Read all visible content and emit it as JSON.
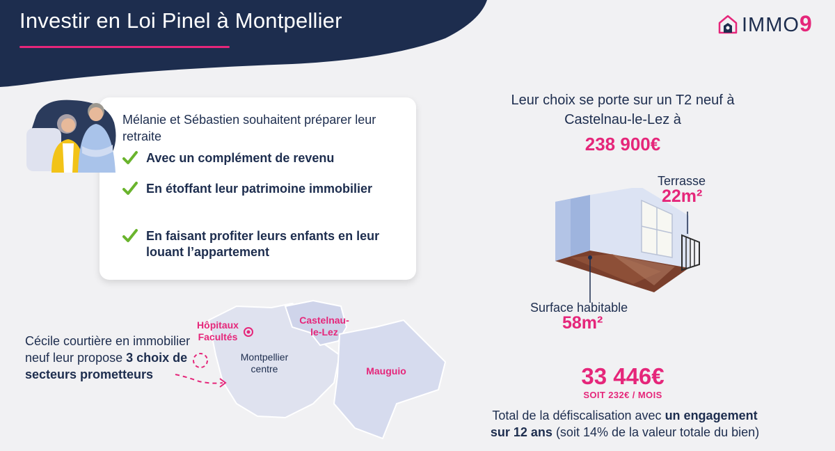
{
  "header": {
    "title": "Investir en Loi Pinel à Montpellier",
    "logo_text": "IMMO",
    "logo_accent": "9"
  },
  "colors": {
    "navy": "#1d2d4e",
    "pink": "#e5267a",
    "background": "#f1f1f3",
    "map_fill": "#dfe2ef",
    "castelnau_fill": "#cfd4ea",
    "check_green": "#6ab42d"
  },
  "profile": {
    "intro": "Mélanie et Sébastien souhaitent préparer leur retraite",
    "checklist": [
      "Avec un complément de revenu",
      "En étoffant leur patrimoine immobilier",
      "En faisant profiter leurs enfants en leur louant l’appartement"
    ],
    "check_icon": "check-icon",
    "avatar_icon": "couple-avatar"
  },
  "property": {
    "choice_line1": "Leur choix se porte sur un T2 neuf à",
    "choice_line2": "Castelnau-le-Lez à",
    "price": "238 900€",
    "terrace_label": "Terrasse",
    "terrace_value": "22m²",
    "surface_label": "Surface habitable",
    "surface_value": "58m²"
  },
  "tax": {
    "amount": "33 446€",
    "monthly": "SOIT 232€ / MOIS",
    "total_prefix": "Total de la défiscalisation avec ",
    "total_bold1": "un engagement",
    "total_bold2": "sur 12 ans",
    "total_suffix": " (soit 14% de la valeur totale du bien)"
  },
  "broker": {
    "text_plain": "Cécile courtière en immobilier neuf leur propose ",
    "text_bold": "3 choix de secteurs prometteurs"
  },
  "map": {
    "hopitaux_line1": "Hôpitaux",
    "hopitaux_line2": "Facultés",
    "castelnau_line1": "Castelnau-",
    "castelnau_line2": "le-Lez",
    "montpellier_line1": "Montpellier",
    "montpellier_line2": "centre",
    "mauguio": "Mauguio"
  }
}
